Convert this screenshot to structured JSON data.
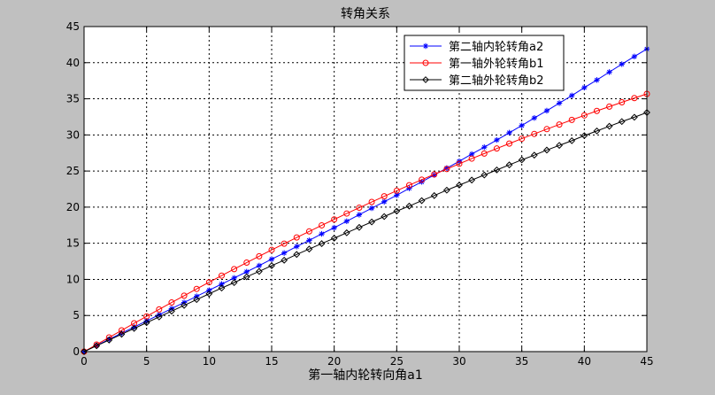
{
  "chart_data": {
    "type": "line",
    "title": "转角关系",
    "xlabel": "第一轴内轮转向角a1",
    "ylabel": "",
    "xlim": [
      0,
      45
    ],
    "ylim": [
      0,
      45
    ],
    "x_ticks": [
      0,
      5,
      10,
      15,
      20,
      25,
      30,
      35,
      40,
      45
    ],
    "y_ticks": [
      0,
      5,
      10,
      15,
      20,
      25,
      30,
      35,
      40,
      45
    ],
    "grid": true,
    "grid_style": "dotted",
    "legend_position": "top-right",
    "x": [
      0,
      1,
      2,
      3,
      4,
      5,
      6,
      7,
      8,
      9,
      10,
      11,
      12,
      13,
      14,
      15,
      16,
      17,
      18,
      19,
      20,
      21,
      22,
      23,
      24,
      25,
      26,
      27,
      28,
      29,
      30,
      31,
      32,
      33,
      34,
      35,
      36,
      37,
      38,
      39,
      40,
      41,
      42,
      43,
      44,
      45
    ],
    "series": [
      {
        "name": "第二轴内轮转角a2",
        "color": "#0000ff",
        "marker": "asterisk",
        "values": [
          0,
          0.85,
          1.7,
          2.55,
          3.4,
          4.25,
          5.1,
          5.95,
          6.8,
          7.65,
          8.5,
          9.35,
          10.2,
          11.05,
          11.9,
          12.8,
          13.65,
          14.55,
          15.4,
          16.3,
          17.15,
          18.05,
          18.95,
          19.85,
          20.75,
          21.65,
          22.6,
          23.5,
          24.45,
          25.4,
          26.35,
          27.35,
          28.3,
          29.3,
          30.3,
          31.3,
          32.35,
          33.35,
          34.4,
          35.45,
          36.55,
          37.6,
          38.7,
          39.8,
          40.85,
          41.9
        ]
      },
      {
        "name": "第一轴外轮转角b1",
        "color": "#ff0000",
        "marker": "circle",
        "values": [
          0,
          0.98,
          1.96,
          2.94,
          3.92,
          4.88,
          5.84,
          6.8,
          7.74,
          8.68,
          9.6,
          10.52,
          11.42,
          12.32,
          13.2,
          14.08,
          14.94,
          15.8,
          16.64,
          17.48,
          18.3,
          19.12,
          19.92,
          20.72,
          21.5,
          22.28,
          23.04,
          23.8,
          24.54,
          25.28,
          26.0,
          26.72,
          27.42,
          28.12,
          28.8,
          29.48,
          30.14,
          30.8,
          31.44,
          32.08,
          32.7,
          33.32,
          33.92,
          34.52,
          35.1,
          35.68
        ]
      },
      {
        "name": "第二轴外轮转角b2",
        "color": "#000000",
        "marker": "diamond",
        "values": [
          0,
          0.8,
          1.6,
          2.4,
          3.2,
          4.0,
          4.8,
          5.6,
          6.4,
          7.2,
          8.0,
          8.8,
          9.55,
          10.35,
          11.1,
          11.9,
          12.65,
          13.45,
          14.2,
          14.95,
          15.7,
          16.45,
          17.2,
          17.95,
          18.7,
          19.45,
          20.15,
          20.9,
          21.6,
          22.35,
          23.05,
          23.75,
          24.45,
          25.15,
          25.85,
          26.55,
          27.2,
          27.9,
          28.55,
          29.2,
          29.9,
          30.55,
          31.2,
          31.85,
          32.45,
          33.1
        ]
      }
    ]
  }
}
